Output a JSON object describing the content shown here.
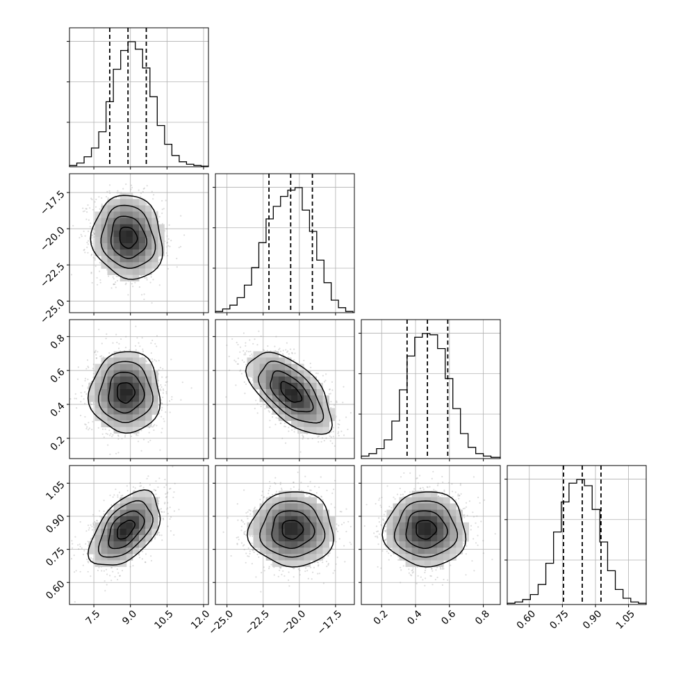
{
  "chart_data": {
    "type": "corner",
    "parameters": [
      {
        "range": [
          6.5,
          12.2
        ],
        "ticks": [
          7.5,
          9.0,
          10.5,
          12.0
        ],
        "tick_labels": [
          "7.5",
          "9.0",
          "10.5",
          "12.0"
        ],
        "quantiles": [
          8.15,
          8.9,
          9.65
        ],
        "hist_bins": [
          6.5,
          6.8,
          7.1,
          7.4,
          7.7,
          8.0,
          8.3,
          8.6,
          8.9,
          9.2,
          9.5,
          9.8,
          10.1,
          10.4,
          10.7,
          11.0,
          11.3,
          11.6,
          11.9,
          12.2
        ],
        "hist_values": [
          0.01,
          0.03,
          0.08,
          0.15,
          0.28,
          0.52,
          0.78,
          0.93,
          1.0,
          0.94,
          0.79,
          0.56,
          0.33,
          0.18,
          0.09,
          0.04,
          0.02,
          0.01,
          0.005
        ]
      },
      {
        "range": [
          -25.8,
          -16.2
        ],
        "ticks": [
          -25.0,
          -22.5,
          -20.0,
          -17.5
        ],
        "tick_labels": [
          "−25.0",
          "−22.5",
          "−20.0",
          "−17.5"
        ],
        "quantiles": [
          -22.1,
          -20.6,
          -19.1
        ],
        "hist_bins": [
          -25.8,
          -25.3,
          -24.8,
          -24.3,
          -23.8,
          -23.3,
          -22.8,
          -22.3,
          -21.8,
          -21.3,
          -20.8,
          -20.3,
          -19.8,
          -19.3,
          -18.8,
          -18.3,
          -17.8,
          -17.3,
          -16.8,
          -16.3
        ],
        "hist_values": [
          0.01,
          0.03,
          0.06,
          0.12,
          0.22,
          0.36,
          0.56,
          0.75,
          0.85,
          0.93,
          0.98,
          1.0,
          0.82,
          0.65,
          0.42,
          0.24,
          0.1,
          0.04,
          0.01
        ]
      },
      {
        "range": [
          0.08,
          0.9
        ],
        "ticks": [
          0.2,
          0.4,
          0.6,
          0.8
        ],
        "tick_labels": [
          "0.2",
          "0.4",
          "0.6",
          "0.8"
        ],
        "quantiles": [
          0.35,
          0.47,
          0.59
        ],
        "hist_bins": [
          0.08,
          0.125,
          0.17,
          0.215,
          0.26,
          0.305,
          0.35,
          0.395,
          0.44,
          0.485,
          0.53,
          0.575,
          0.62,
          0.665,
          0.71,
          0.755,
          0.8,
          0.845,
          0.9
        ],
        "hist_values": [
          0.02,
          0.04,
          0.08,
          0.15,
          0.3,
          0.55,
          0.82,
          0.97,
          1.0,
          0.99,
          0.88,
          0.64,
          0.4,
          0.2,
          0.09,
          0.04,
          0.02,
          0.01
        ]
      },
      {
        "range": [
          0.5,
          1.13
        ],
        "ticks": [
          0.6,
          0.75,
          0.9,
          1.05
        ],
        "tick_labels": [
          "0.60",
          "0.75",
          "0.90",
          "1.05"
        ],
        "quantiles": [
          0.755,
          0.84,
          0.925
        ],
        "hist_bins": [
          0.5,
          0.535,
          0.57,
          0.605,
          0.64,
          0.675,
          0.71,
          0.745,
          0.78,
          0.815,
          0.85,
          0.885,
          0.92,
          0.955,
          0.99,
          1.025,
          1.06,
          1.095,
          1.13
        ],
        "hist_values": [
          0.01,
          0.02,
          0.04,
          0.08,
          0.16,
          0.33,
          0.58,
          0.82,
          0.97,
          1.0,
          0.95,
          0.76,
          0.5,
          0.27,
          0.12,
          0.05,
          0.02,
          0.01
        ]
      }
    ],
    "pairs": [
      {
        "row": 1,
        "col": 0,
        "center": [
          8.9,
          -20.6
        ],
        "sigma": [
          0.72,
          1.45
        ],
        "rho": -0.1
      },
      {
        "row": 2,
        "col": 0,
        "center": [
          8.8,
          0.47
        ],
        "sigma": [
          0.72,
          0.12
        ],
        "rho": 0.0
      },
      {
        "row": 2,
        "col": 1,
        "center": [
          -20.6,
          0.47
        ],
        "sigma": [
          1.45,
          0.12
        ],
        "rho": -0.6
      },
      {
        "row": 3,
        "col": 0,
        "center": [
          8.8,
          0.84
        ],
        "sigma": [
          0.72,
          0.085
        ],
        "rho": 0.5
      },
      {
        "row": 3,
        "col": 1,
        "center": [
          -20.5,
          0.84
        ],
        "sigma": [
          1.45,
          0.085
        ],
        "rho": 0.0
      },
      {
        "row": 3,
        "col": 2,
        "center": [
          0.46,
          0.84
        ],
        "sigma": [
          0.12,
          0.085
        ],
        "rho": 0.0
      }
    ],
    "contour_levels_sigma": [
      0.5,
      1.0,
      1.5,
      2.0
    ],
    "grid": true,
    "colors": {
      "points": "#9a9a9a",
      "density_dark": "#000000",
      "lines": "#000000"
    }
  }
}
